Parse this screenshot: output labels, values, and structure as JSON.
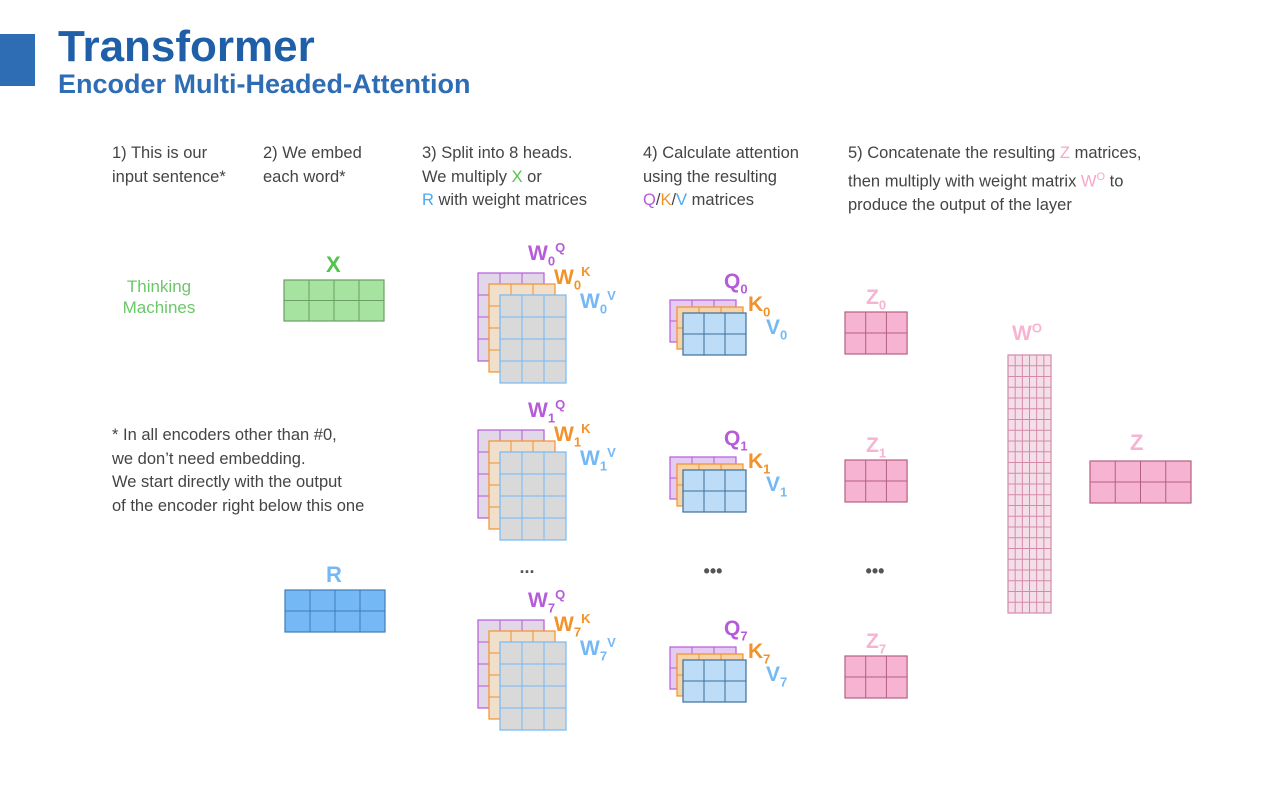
{
  "header": {
    "title": "Transformer",
    "subtitle": "Encoder Multi-Headed-Attention"
  },
  "steps": {
    "s1": {
      "l1": "1) This is our",
      "l2": "input sentence*"
    },
    "s2": {
      "l1": "2) We embed",
      "l2": "each word*"
    },
    "s3": {
      "l1": "3) Split into 8 heads.",
      "l2a": "We multiply ",
      "x": "X",
      "l2b": " or",
      "r": "R",
      "l3b": " with weight matrices"
    },
    "s4": {
      "l1": "4) Calculate attention",
      "l2": "using the resulting",
      "q": "Q",
      "slash1": "/",
      "k": "K",
      "slash2": "/",
      "v": "V",
      "l3b": " matrices"
    },
    "s5": {
      "l1a": "5) Concatenate the resulting ",
      "z": "Z",
      "l1b": " matrices,",
      "l2a": "then multiply with weight matrix ",
      "wo": "W",
      "wo_sup": "O",
      "l2b": " to",
      "l3": "produce the output of the layer"
    }
  },
  "input_sentence": {
    "word1": "Thinking",
    "word2": "Machines"
  },
  "note": {
    "l1": "* In all encoders other than #0,",
    "l2": "we don’t need embedding.",
    "l3": "We start directly with the output",
    "l4": "of the encoder right below this one"
  },
  "labels": {
    "x": "X",
    "r": "R",
    "ellipsis": "...",
    "ellipsis_small": "•••",
    "w": "W",
    "q": "Q",
    "k": "K",
    "v": "V",
    "z": "Z",
    "wo_main": "W",
    "wo_sup": "O",
    "z_out": "Z"
  },
  "heads": [
    {
      "index": "0"
    },
    {
      "index": "1"
    },
    {
      "index": "7"
    }
  ],
  "colors": {
    "title": "#1f5fa8",
    "accent_bar": "#2e6db4",
    "green": "#a6e3a1",
    "blue": "#74b9f5",
    "purple": "#b65bd9",
    "orange": "#f2922a",
    "light_blue": "#bcdcf7",
    "pink": "#f7b3d2",
    "gray_cell": "#d9d9d9"
  }
}
